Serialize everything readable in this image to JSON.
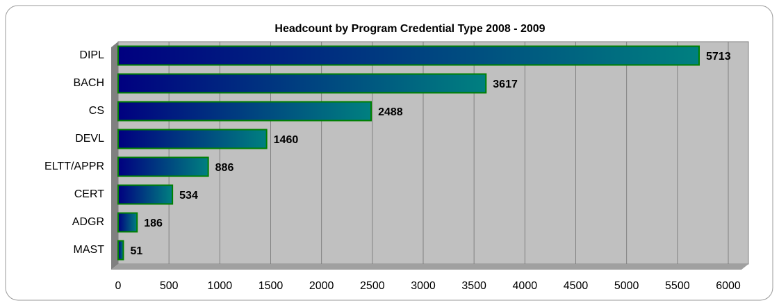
{
  "chart_data": {
    "type": "hbar",
    "title": "Headcount by Program Credential Type 2008 - 2009",
    "categories": [
      "DIPL",
      "BACH",
      "CS",
      "DEVL",
      "ELTT/APPR",
      "CERT",
      "ADGR",
      "MAST"
    ],
    "values": [
      5713,
      3617,
      2488,
      1460,
      886,
      534,
      186,
      51
    ],
    "color_start": "#000080",
    "color_end": "#008080",
    "border_color": "#008000",
    "xlim": [
      0,
      6000
    ],
    "xticks": [
      0,
      500,
      1000,
      1500,
      2000,
      2500,
      3000,
      3500,
      4000,
      4500,
      5000,
      5500,
      6000
    ],
    "grid": true
  }
}
